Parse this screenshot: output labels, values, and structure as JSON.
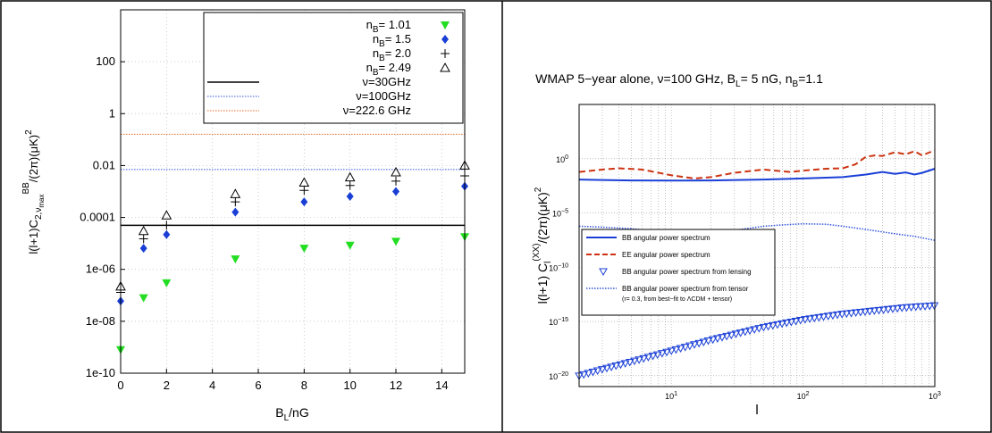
{
  "chart_data": [
    {
      "type": "scatter",
      "title": "",
      "xlabel": "B",
      "xlabel_sub": "L",
      "xlabel_tail": "/nG",
      "ylabel": "l(l+1)C",
      "ylabel_sub": "2,ν",
      "ylabel_subsub": "max",
      "ylabel_sup": "BB",
      "ylabel_tail": "/(2π)(μK)",
      "ylabel_tail_sup": "2",
      "yscale": "log",
      "xlim": [
        0,
        15
      ],
      "ylim": [
        1e-10,
        10000
      ],
      "grid": true,
      "legend_position": "top-right",
      "x_ticks": [
        0,
        2,
        4,
        6,
        8,
        10,
        12,
        14
      ],
      "y_ticks": [
        {
          "value": 1e-10,
          "label": "1e-10"
        },
        {
          "value": 1e-08,
          "label": "1e-08"
        },
        {
          "value": 1e-06,
          "label": "1e-06"
        },
        {
          "value": 0.0001,
          "label": "0.0001"
        },
        {
          "value": 0.01,
          "label": "0.01"
        },
        {
          "value": 1,
          "label": "1"
        },
        {
          "value": 100,
          "label": "100"
        }
      ],
      "series": [
        {
          "name": "n",
          "name_sub": "B",
          "name_tail": "= 1.01",
          "marker": "triangle-down-filled",
          "color": "#22dd22",
          "x": [
            0,
            1,
            2,
            5,
            8,
            10,
            12,
            15
          ],
          "y": [
            8e-10,
            8e-08,
            3e-07,
            2.5e-06,
            6.5e-06,
            8.5e-06,
            1.2e-05,
            1.8e-05
          ]
        },
        {
          "name": "n",
          "name_sub": "B",
          "name_tail": "= 1.5",
          "marker": "diamond-filled",
          "color": "#1a3fd6",
          "x": [
            0,
            1,
            2,
            5,
            8,
            10,
            12,
            15
          ],
          "y": [
            6e-08,
            6.5e-06,
            2.2e-05,
            0.00016,
            0.0004,
            0.00065,
            0.001,
            0.0016
          ]
        },
        {
          "name": "n",
          "name_sub": "B",
          "name_tail": "= 2.0",
          "marker": "plus",
          "color": "#000000",
          "x": [
            0,
            1,
            2,
            5,
            8,
            10,
            12,
            15
          ],
          "y": [
            1.3e-07,
            1.5e-05,
            5e-05,
            0.0004,
            0.0011,
            0.0017,
            0.0025,
            0.004
          ]
        },
        {
          "name": "n",
          "name_sub": "B",
          "name_tail": "= 2.49",
          "marker": "triangle-up-open",
          "color": "#000000",
          "x": [
            0,
            1,
            2,
            5,
            8,
            10,
            12,
            15
          ],
          "y": [
            2.2e-07,
            3e-05,
            0.00012,
            0.0008,
            0.0022,
            0.0035,
            0.0055,
            0.01
          ]
        }
      ],
      "lines": [
        {
          "name": "ν=30GHz",
          "y": 5e-05,
          "color": "#000000",
          "style": "solid"
        },
        {
          "name": "ν=100GHz",
          "y": 0.007,
          "color": "#3355dd",
          "style": "dotted"
        },
        {
          "name": "ν=222.6 GHz",
          "y": 0.16,
          "color": "#e46a2c",
          "style": "dotted"
        }
      ]
    },
    {
      "type": "line",
      "title": "WMAP 5−year alone, ν=100 GHz, B",
      "title_sub": "L",
      "title_tail": "= 5 nG, n",
      "title_sub2": "B",
      "title_tail2": "=1.1",
      "xlabel": "l",
      "ylabel": "l(l+1) C",
      "ylabel_sub": "l",
      "ylabel_sup": "(XX)",
      "ylabel_tail": "/(2π)(μK)",
      "ylabel_tail_sup": "2",
      "xscale": "log",
      "yscale": "log",
      "xlim": [
        2,
        1000
      ],
      "ylim": [
        1e-21,
        100000
      ],
      "grid": true,
      "legend_position": "bottom-left",
      "x_ticks": [
        {
          "base": "10",
          "exp": "1",
          "value": 10
        },
        {
          "base": "10",
          "exp": "2",
          "value": 100
        },
        {
          "base": "10",
          "exp": "3",
          "value": 1000
        }
      ],
      "y_ticks": [
        {
          "base": "10",
          "exp": "−20",
          "value": 1e-20
        },
        {
          "base": "10",
          "exp": "−15",
          "value": 1e-15
        },
        {
          "base": "10",
          "exp": "−10",
          "value": 1e-10
        },
        {
          "base": "10",
          "exp": "−5",
          "value": 1e-05
        },
        {
          "base": "10",
          "exp": "0",
          "value": 1
        }
      ],
      "series": [
        {
          "name": "BB angular power spectrum",
          "color": "#1a3fd6",
          "style": "solid",
          "x": [
            2,
            3,
            5,
            10,
            20,
            50,
            100,
            200,
            300,
            400,
            500,
            600,
            700,
            800,
            1000
          ],
          "y": [
            0.012,
            0.011,
            0.01,
            0.0095,
            0.01,
            0.012,
            0.015,
            0.02,
            0.035,
            0.06,
            0.04,
            0.055,
            0.035,
            0.05,
            0.12
          ]
        },
        {
          "name": "EE angular power spectrum",
          "color": "#cc3311",
          "style": "dashed",
          "x": [
            2,
            3,
            4,
            6,
            10,
            15,
            20,
            30,
            50,
            80,
            100,
            150,
            200,
            250,
            300,
            350,
            400,
            500,
            600,
            700,
            800,
            1000
          ],
          "y": [
            0.06,
            0.1,
            0.13,
            0.1,
            0.03,
            0.015,
            0.02,
            0.05,
            0.1,
            0.06,
            0.08,
            0.12,
            0.13,
            0.3,
            1.5,
            2.0,
            1.8,
            4.0,
            2.5,
            5.0,
            2.0,
            6.0
          ]
        },
        {
          "name": "BB angular power spectrum from lensing",
          "color": "#1a3fd6",
          "style": "markers",
          "x": [
            2,
            3,
            5,
            10,
            20,
            50,
            100,
            200,
            400,
            600,
            1000
          ],
          "y": [
            1e-20,
            4e-20,
            2e-19,
            2e-18,
            2e-17,
            3e-16,
            1.5e-15,
            5e-15,
            1.2e-14,
            2e-14,
            3e-14
          ]
        },
        {
          "name": "BB angular power spectrum from tensor",
          "note": "(r= 0.3, from best−fit to ΛCDM + tensor)",
          "color": "#3355dd",
          "style": "dotted",
          "x": [
            2,
            3,
            5,
            8,
            10,
            15,
            20,
            30,
            50,
            70,
            100,
            150,
            200,
            300,
            500,
            700,
            1000
          ],
          "y": [
            6e-07,
            5e-07,
            3.5e-07,
            2e-07,
            1.3e-07,
            9e-08,
            1.2e-07,
            2.5e-07,
            6e-07,
            8e-07,
            1e-06,
            9e-07,
            6e-07,
            3e-07,
            1.2e-07,
            7e-08,
            3e-08
          ]
        }
      ]
    }
  ]
}
